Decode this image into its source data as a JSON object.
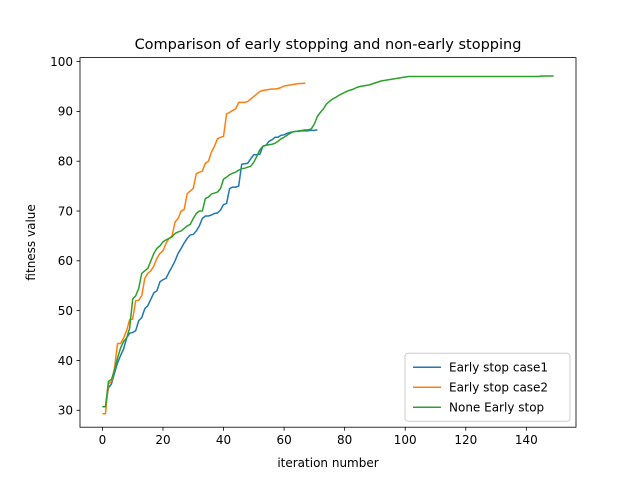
{
  "chart_data": {
    "type": "line",
    "title": "Comparison of early stopping and non-early stopping",
    "xlabel": "iteration number",
    "ylabel": "fitness value",
    "xlim": [
      -7.4,
      156.4
    ],
    "ylim": [
      26.6,
      100.8
    ],
    "xticks": [
      0,
      20,
      40,
      60,
      80,
      100,
      120,
      140
    ],
    "yticks": [
      30,
      40,
      50,
      60,
      70,
      80,
      90,
      100
    ],
    "grid": false,
    "legend_position": "lower-right",
    "series": [
      {
        "name": "Early stop case1",
        "color": "#1f77b4",
        "points": [
          [
            0,
            30.7
          ],
          [
            1,
            30.7
          ],
          [
            2,
            34.5
          ],
          [
            3,
            35.3
          ],
          [
            4,
            37.5
          ],
          [
            5,
            39.5
          ],
          [
            6,
            41.0
          ],
          [
            7,
            42.3
          ],
          [
            8,
            44.5
          ],
          [
            9,
            45.5
          ],
          [
            10,
            45.6
          ],
          [
            11,
            46.0
          ],
          [
            12,
            48.0
          ],
          [
            13,
            48.6
          ],
          [
            14,
            50.4
          ],
          [
            15,
            51.0
          ],
          [
            16,
            52.3
          ],
          [
            17,
            53.6
          ],
          [
            18,
            54.0
          ],
          [
            19,
            55.8
          ],
          [
            20,
            56.2
          ],
          [
            21,
            56.5
          ],
          [
            22,
            57.7
          ],
          [
            23,
            58.8
          ],
          [
            24,
            60.0
          ],
          [
            25,
            61.5
          ],
          [
            26,
            62.5
          ],
          [
            27,
            63.6
          ],
          [
            28,
            64.5
          ],
          [
            29,
            65.2
          ],
          [
            30,
            65.3
          ],
          [
            31,
            66.0
          ],
          [
            32,
            67.0
          ],
          [
            33,
            68.5
          ],
          [
            34,
            69.0
          ],
          [
            35,
            69.0
          ],
          [
            36,
            69.2
          ],
          [
            37,
            69.5
          ],
          [
            38,
            69.6
          ],
          [
            39,
            70.2
          ],
          [
            40,
            71.3
          ],
          [
            41,
            71.5
          ],
          [
            42,
            74.5
          ],
          [
            43,
            74.8
          ],
          [
            44,
            74.8
          ],
          [
            45,
            75.0
          ],
          [
            46,
            79.4
          ],
          [
            47,
            79.5
          ],
          [
            48,
            79.6
          ],
          [
            49,
            80.5
          ],
          [
            50,
            81.3
          ],
          [
            51,
            81.3
          ],
          [
            52,
            81.4
          ],
          [
            53,
            83.0
          ],
          [
            54,
            83.2
          ],
          [
            55,
            84.0
          ],
          [
            56,
            84.3
          ],
          [
            57,
            84.8
          ],
          [
            58,
            84.8
          ],
          [
            59,
            85.2
          ],
          [
            60,
            85.3
          ],
          [
            61,
            85.6
          ],
          [
            62,
            85.8
          ],
          [
            63,
            85.9
          ],
          [
            64,
            86.0
          ],
          [
            65,
            86.0
          ],
          [
            66,
            86.1
          ],
          [
            67,
            86.1
          ],
          [
            68,
            86.1
          ],
          [
            69,
            86.2
          ],
          [
            70,
            86.2
          ],
          [
            71,
            86.3
          ]
        ]
      },
      {
        "name": "Early stop case2",
        "color": "#ff7f0e",
        "points": [
          [
            0,
            29.3
          ],
          [
            1,
            29.3
          ],
          [
            2,
            35.3
          ],
          [
            3,
            35.8
          ],
          [
            4,
            38.5
          ],
          [
            5,
            43.4
          ],
          [
            6,
            43.4
          ],
          [
            7,
            44.5
          ],
          [
            8,
            46.0
          ],
          [
            9,
            48.2
          ],
          [
            10,
            48.3
          ],
          [
            11,
            52.0
          ],
          [
            12,
            52.1
          ],
          [
            13,
            53.0
          ],
          [
            14,
            56.5
          ],
          [
            15,
            57.5
          ],
          [
            16,
            58.0
          ],
          [
            17,
            59.0
          ],
          [
            18,
            60.5
          ],
          [
            19,
            61.5
          ],
          [
            20,
            62.0
          ],
          [
            21,
            63.5
          ],
          [
            22,
            64.5
          ],
          [
            23,
            65.0
          ],
          [
            24,
            67.8
          ],
          [
            25,
            68.5
          ],
          [
            26,
            70.0
          ],
          [
            27,
            70.3
          ],
          [
            28,
            73.5
          ],
          [
            29,
            74.0
          ],
          [
            30,
            74.5
          ],
          [
            31,
            77.5
          ],
          [
            32,
            77.8
          ],
          [
            33,
            78.0
          ],
          [
            34,
            79.6
          ],
          [
            35,
            80.0
          ],
          [
            36,
            81.8
          ],
          [
            37,
            83.0
          ],
          [
            38,
            84.5
          ],
          [
            39,
            84.8
          ],
          [
            40,
            85.0
          ],
          [
            41,
            89.5
          ],
          [
            42,
            89.8
          ],
          [
            43,
            90.2
          ],
          [
            44,
            90.5
          ],
          [
            45,
            91.8
          ],
          [
            46,
            91.8
          ],
          [
            47,
            91.8
          ],
          [
            48,
            92.0
          ],
          [
            49,
            92.5
          ],
          [
            50,
            93.0
          ],
          [
            51,
            93.5
          ],
          [
            52,
            94.0
          ],
          [
            53,
            94.2
          ],
          [
            54,
            94.3
          ],
          [
            55,
            94.4
          ],
          [
            56,
            94.5
          ],
          [
            57,
            94.5
          ],
          [
            58,
            94.6
          ],
          [
            59,
            94.8
          ],
          [
            60,
            95.1
          ],
          [
            61,
            95.2
          ],
          [
            62,
            95.3
          ],
          [
            63,
            95.4
          ],
          [
            64,
            95.5
          ],
          [
            65,
            95.6
          ],
          [
            66,
            95.6
          ],
          [
            67,
            95.7
          ]
        ]
      },
      {
        "name": "None Early stop",
        "color": "#2ca02c",
        "points": [
          [
            0,
            30.7
          ],
          [
            1,
            30.7
          ],
          [
            2,
            35.8
          ],
          [
            3,
            36.2
          ],
          [
            4,
            38.0
          ],
          [
            5,
            40.5
          ],
          [
            6,
            42.5
          ],
          [
            7,
            43.8
          ],
          [
            8,
            44.5
          ],
          [
            9,
            46.5
          ],
          [
            10,
            52.3
          ],
          [
            11,
            53.0
          ],
          [
            12,
            54.5
          ],
          [
            13,
            57.5
          ],
          [
            14,
            58.0
          ],
          [
            15,
            58.5
          ],
          [
            16,
            60.0
          ],
          [
            17,
            61.5
          ],
          [
            18,
            62.5
          ],
          [
            19,
            63.0
          ],
          [
            20,
            63.8
          ],
          [
            21,
            64.2
          ],
          [
            22,
            64.5
          ],
          [
            23,
            64.8
          ],
          [
            24,
            65.5
          ],
          [
            25,
            65.8
          ],
          [
            26,
            66.0
          ],
          [
            27,
            66.5
          ],
          [
            28,
            67.0
          ],
          [
            29,
            67.3
          ],
          [
            30,
            68.5
          ],
          [
            31,
            69.5
          ],
          [
            32,
            70.0
          ],
          [
            33,
            70.0
          ],
          [
            34,
            72.5
          ],
          [
            35,
            72.8
          ],
          [
            36,
            73.4
          ],
          [
            37,
            73.6
          ],
          [
            38,
            73.8
          ],
          [
            39,
            74.5
          ],
          [
            40,
            76.4
          ],
          [
            41,
            76.8
          ],
          [
            42,
            77.3
          ],
          [
            43,
            77.6
          ],
          [
            44,
            77.8
          ],
          [
            45,
            78.2
          ],
          [
            46,
            78.5
          ],
          [
            47,
            78.6
          ],
          [
            48,
            78.8
          ],
          [
            49,
            79.0
          ],
          [
            50,
            79.8
          ],
          [
            51,
            81.0
          ],
          [
            52,
            82.3
          ],
          [
            53,
            83.0
          ],
          [
            54,
            83.2
          ],
          [
            55,
            83.3
          ],
          [
            56,
            83.4
          ],
          [
            57,
            83.6
          ],
          [
            58,
            84.0
          ],
          [
            59,
            84.5
          ],
          [
            60,
            84.8
          ],
          [
            61,
            85.2
          ],
          [
            62,
            85.6
          ],
          [
            63,
            85.9
          ],
          [
            64,
            86.0
          ],
          [
            65,
            86.1
          ],
          [
            66,
            86.2
          ],
          [
            67,
            86.3
          ],
          [
            68,
            86.3
          ],
          [
            69,
            86.5
          ],
          [
            70,
            87.5
          ],
          [
            71,
            89.0
          ],
          [
            72,
            89.8
          ],
          [
            73,
            90.5
          ],
          [
            74,
            91.5
          ],
          [
            75,
            92.0
          ],
          [
            76,
            92.5
          ],
          [
            77,
            92.8
          ],
          [
            78,
            93.2
          ],
          [
            79,
            93.5
          ],
          [
            80,
            93.8
          ],
          [
            81,
            94.1
          ],
          [
            82,
            94.3
          ],
          [
            83,
            94.5
          ],
          [
            84,
            94.8
          ],
          [
            85,
            95.0
          ],
          [
            86,
            95.1
          ],
          [
            87,
            95.2
          ],
          [
            88,
            95.3
          ],
          [
            89,
            95.5
          ],
          [
            90,
            95.7
          ],
          [
            91,
            95.9
          ],
          [
            92,
            96.1
          ],
          [
            93,
            96.2
          ],
          [
            94,
            96.3
          ],
          [
            95,
            96.4
          ],
          [
            96,
            96.5
          ],
          [
            97,
            96.6
          ],
          [
            98,
            96.7
          ],
          [
            99,
            96.8
          ],
          [
            100,
            96.9
          ],
          [
            101,
            97.0
          ],
          [
            102,
            97.0
          ],
          [
            103,
            97.0
          ],
          [
            104,
            97.0
          ],
          [
            105,
            97.0
          ],
          [
            106,
            97.0
          ],
          [
            107,
            97.0
          ],
          [
            108,
            97.0
          ],
          [
            109,
            97.0
          ],
          [
            110,
            97.0
          ],
          [
            111,
            97.0
          ],
          [
            112,
            97.0
          ],
          [
            113,
            97.0
          ],
          [
            114,
            97.0
          ],
          [
            115,
            97.0
          ],
          [
            116,
            97.0
          ],
          [
            117,
            97.0
          ],
          [
            118,
            97.0
          ],
          [
            119,
            97.0
          ],
          [
            120,
            97.0
          ],
          [
            121,
            97.0
          ],
          [
            122,
            97.0
          ],
          [
            123,
            97.0
          ],
          [
            124,
            97.0
          ],
          [
            125,
            97.0
          ],
          [
            126,
            97.0
          ],
          [
            127,
            97.0
          ],
          [
            128,
            97.0
          ],
          [
            129,
            97.0
          ],
          [
            130,
            97.0
          ],
          [
            131,
            97.0
          ],
          [
            132,
            97.0
          ],
          [
            133,
            97.0
          ],
          [
            134,
            97.0
          ],
          [
            135,
            97.0
          ],
          [
            136,
            97.0
          ],
          [
            137,
            97.0
          ],
          [
            138,
            97.0
          ],
          [
            139,
            97.0
          ],
          [
            140,
            97.0
          ],
          [
            141,
            97.0
          ],
          [
            142,
            97.0
          ],
          [
            143,
            97.0
          ],
          [
            144,
            97.0
          ],
          [
            145,
            97.1
          ],
          [
            146,
            97.1
          ],
          [
            147,
            97.1
          ],
          [
            148,
            97.1
          ],
          [
            149,
            97.1
          ]
        ]
      }
    ]
  }
}
